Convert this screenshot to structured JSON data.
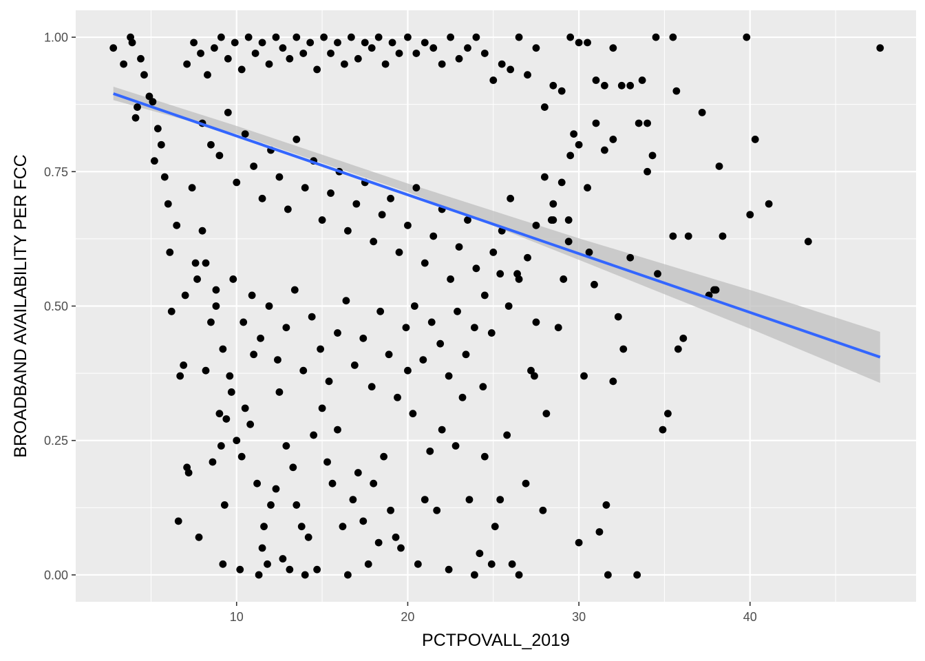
{
  "chart_data": {
    "type": "scatter",
    "title": "",
    "xlabel": "PCTPOVALL_2019",
    "ylabel": "BROADBAND AVAILABILITY PER FCC",
    "xlim": [
      0.6,
      49.7
    ],
    "ylim": [
      -0.05,
      1.05
    ],
    "x_ticks": [
      10,
      20,
      30,
      40
    ],
    "x_tick_labels": [
      "10",
      "20",
      "30",
      "40"
    ],
    "y_ticks": [
      0,
      0.25,
      0.5,
      0.75,
      1
    ],
    "y_tick_labels": [
      "0.00",
      "0.25",
      "0.50",
      "0.75",
      "1.00"
    ],
    "grid": true,
    "legend": "none",
    "colors": {
      "panel": "#ebebeb",
      "grid": "#ffffff",
      "points": "#000000",
      "fit_line": "#3366ff",
      "confidence_band": "#bfbfbf"
    },
    "fit_line": {
      "method": "lm",
      "x_start": 2.8,
      "y_start": 0.895,
      "x_end": 47.6,
      "y_end": 0.405
    },
    "confidence_band": {
      "x": [
        2.8,
        10,
        20,
        30,
        40,
        47.6
      ],
      "lower": [
        0.883,
        0.82,
        0.712,
        0.586,
        0.458,
        0.357
      ],
      "upper": [
        0.908,
        0.835,
        0.728,
        0.626,
        0.53,
        0.452
      ]
    },
    "series": [
      {
        "values": [
          [
            2.8,
            0.98
          ],
          [
            3.4,
            0.95
          ],
          [
            3.8,
            1.0
          ],
          [
            3.9,
            0.99
          ],
          [
            4.1,
            0.85
          ],
          [
            4.2,
            0.87
          ],
          [
            4.4,
            0.96
          ],
          [
            4.6,
            0.93
          ],
          [
            4.9,
            0.89
          ],
          [
            5.1,
            0.88
          ],
          [
            5.2,
            0.77
          ],
          [
            5.4,
            0.83
          ],
          [
            5.6,
            0.8
          ],
          [
            5.8,
            0.74
          ],
          [
            6.0,
            0.69
          ],
          [
            6.1,
            0.6
          ],
          [
            6.2,
            0.49
          ],
          [
            6.5,
            0.65
          ],
          [
            6.6,
            0.1
          ],
          [
            6.7,
            0.37
          ],
          [
            6.9,
            0.39
          ],
          [
            7.0,
            0.52
          ],
          [
            7.1,
            0.2
          ],
          [
            7.2,
            0.19
          ],
          [
            7.4,
            0.72
          ],
          [
            7.6,
            0.58
          ],
          [
            7.7,
            0.55
          ],
          [
            7.8,
            0.07
          ],
          [
            8.0,
            0.64
          ],
          [
            8.2,
            0.38
          ],
          [
            8.5,
            0.47
          ],
          [
            8.6,
            0.21
          ],
          [
            8.8,
            0.53
          ],
          [
            9.0,
            0.3
          ],
          [
            9.1,
            0.24
          ],
          [
            9.2,
            0.02
          ],
          [
            9.3,
            0.13
          ],
          [
            9.4,
            0.29
          ],
          [
            9.6,
            0.37
          ],
          [
            9.7,
            0.34
          ],
          [
            10.0,
            0.25
          ],
          [
            10.2,
            0.01
          ],
          [
            10.3,
            0.22
          ],
          [
            10.5,
            0.31
          ],
          [
            10.8,
            0.28
          ],
          [
            11.0,
            0.41
          ],
          [
            11.2,
            0.17
          ],
          [
            11.3,
            0.0
          ],
          [
            11.5,
            0.05
          ],
          [
            11.6,
            0.09
          ],
          [
            11.8,
            0.02
          ],
          [
            12.0,
            0.13
          ],
          [
            12.3,
            0.16
          ],
          [
            12.5,
            0.34
          ],
          [
            12.7,
            0.03
          ],
          [
            12.9,
            0.24
          ],
          [
            13.1,
            0.01
          ],
          [
            13.3,
            0.2
          ],
          [
            13.5,
            0.13
          ],
          [
            13.8,
            0.09
          ],
          [
            14.0,
            0.0
          ],
          [
            14.2,
            0.07
          ],
          [
            14.5,
            0.26
          ],
          [
            14.7,
            0.01
          ],
          [
            15.0,
            0.31
          ],
          [
            15.3,
            0.21
          ],
          [
            15.6,
            0.17
          ],
          [
            15.9,
            0.27
          ],
          [
            16.2,
            0.09
          ],
          [
            16.5,
            0.0
          ],
          [
            16.8,
            0.14
          ],
          [
            17.1,
            0.19
          ],
          [
            17.4,
            0.1
          ],
          [
            17.7,
            0.02
          ],
          [
            18.0,
            0.17
          ],
          [
            18.3,
            0.06
          ],
          [
            18.6,
            0.22
          ],
          [
            19.0,
            0.12
          ],
          [
            19.3,
            0.07
          ],
          [
            19.6,
            0.05
          ],
          [
            20.0,
            0.38
          ],
          [
            20.3,
            0.3
          ],
          [
            20.6,
            0.02
          ],
          [
            21.0,
            0.14
          ],
          [
            21.3,
            0.23
          ],
          [
            21.7,
            0.12
          ],
          [
            22.0,
            0.27
          ],
          [
            22.4,
            0.01
          ],
          [
            22.8,
            0.24
          ],
          [
            23.2,
            0.33
          ],
          [
            23.6,
            0.14
          ],
          [
            23.9,
            0.0
          ],
          [
            24.2,
            0.04
          ],
          [
            24.5,
            0.22
          ],
          [
            24.9,
            0.02
          ],
          [
            25.1,
            0.09
          ],
          [
            25.4,
            0.14
          ],
          [
            25.8,
            0.26
          ],
          [
            26.1,
            0.02
          ],
          [
            26.5,
            0.0
          ],
          [
            26.9,
            0.17
          ],
          [
            27.2,
            0.38
          ],
          [
            27.5,
            0.47
          ],
          [
            27.9,
            0.12
          ],
          [
            28.1,
            0.3
          ],
          [
            28.5,
            0.66
          ],
          [
            28.8,
            0.46
          ],
          [
            29.1,
            0.55
          ],
          [
            29.4,
            0.62
          ],
          [
            29.7,
            0.82
          ],
          [
            30.0,
            0.06
          ],
          [
            30.3,
            0.37
          ],
          [
            30.6,
            0.6
          ],
          [
            30.9,
            0.54
          ],
          [
            31.2,
            0.08
          ],
          [
            31.6,
            0.13
          ],
          [
            31.7,
            0.0
          ],
          [
            32.0,
            0.36
          ],
          [
            32.3,
            0.48
          ],
          [
            32.6,
            0.42
          ],
          [
            33.0,
            0.91
          ],
          [
            33.4,
            0.0
          ],
          [
            33.7,
            0.92
          ],
          [
            34.0,
            0.75
          ],
          [
            34.3,
            0.78
          ],
          [
            34.6,
            0.56
          ],
          [
            34.9,
            0.27
          ],
          [
            35.2,
            0.3
          ],
          [
            35.5,
            0.63
          ],
          [
            35.8,
            0.42
          ],
          [
            36.1,
            0.44
          ],
          [
            36.4,
            0.63
          ],
          [
            37.2,
            0.86
          ],
          [
            37.9,
            0.53
          ],
          [
            38.2,
            0.76
          ],
          [
            38.4,
            0.63
          ],
          [
            39.8,
            1.0
          ],
          [
            40.0,
            0.67
          ],
          [
            40.3,
            0.81
          ],
          [
            41.1,
            0.69
          ],
          [
            43.4,
            0.62
          ],
          [
            47.6,
            0.98
          ],
          [
            7.1,
            0.95
          ],
          [
            7.5,
            0.99
          ],
          [
            7.9,
            0.97
          ],
          [
            8.3,
            0.93
          ],
          [
            8.7,
            0.98
          ],
          [
            9.1,
            1.0
          ],
          [
            9.5,
            0.96
          ],
          [
            9.9,
            0.99
          ],
          [
            10.3,
            0.94
          ],
          [
            10.7,
            1.0
          ],
          [
            11.1,
            0.97
          ],
          [
            11.5,
            0.99
          ],
          [
            11.9,
            0.95
          ],
          [
            12.3,
            1.0
          ],
          [
            12.7,
            0.98
          ],
          [
            13.1,
            0.96
          ],
          [
            13.5,
            1.0
          ],
          [
            13.9,
            0.97
          ],
          [
            14.3,
            0.99
          ],
          [
            14.7,
            0.94
          ],
          [
            15.1,
            1.0
          ],
          [
            15.5,
            0.97
          ],
          [
            15.9,
            0.99
          ],
          [
            16.3,
            0.95
          ],
          [
            16.7,
            1.0
          ],
          [
            17.1,
            0.96
          ],
          [
            17.5,
            0.99
          ],
          [
            17.9,
            0.98
          ],
          [
            18.3,
            1.0
          ],
          [
            18.7,
            0.95
          ],
          [
            19.1,
            0.99
          ],
          [
            19.5,
            0.97
          ],
          [
            20.0,
            1.0
          ],
          [
            20.5,
            0.97
          ],
          [
            21.0,
            0.99
          ],
          [
            21.5,
            0.98
          ],
          [
            22.0,
            0.95
          ],
          [
            22.5,
            1.0
          ],
          [
            23.0,
            0.96
          ],
          [
            23.5,
            0.98
          ],
          [
            24.0,
            1.0
          ],
          [
            24.5,
            0.97
          ],
          [
            25.0,
            0.92
          ],
          [
            25.5,
            0.95
          ],
          [
            26.0,
            0.94
          ],
          [
            26.5,
            1.0
          ],
          [
            27.0,
            0.93
          ],
          [
            27.5,
            0.98
          ],
          [
            28.0,
            0.87
          ],
          [
            28.5,
            0.91
          ],
          [
            29.0,
            0.9
          ],
          [
            29.5,
            1.0
          ],
          [
            30.0,
            0.99
          ],
          [
            30.5,
            0.99
          ],
          [
            31.0,
            0.92
          ],
          [
            31.5,
            0.91
          ],
          [
            32.0,
            0.98
          ],
          [
            32.5,
            0.91
          ],
          [
            34.5,
            1.0
          ],
          [
            35.5,
            1.0
          ],
          [
            35.7,
            0.9
          ],
          [
            8.0,
            0.84
          ],
          [
            8.5,
            0.8
          ],
          [
            9.0,
            0.78
          ],
          [
            9.5,
            0.86
          ],
          [
            10.0,
            0.73
          ],
          [
            10.5,
            0.82
          ],
          [
            11.0,
            0.76
          ],
          [
            11.5,
            0.7
          ],
          [
            12.0,
            0.79
          ],
          [
            12.5,
            0.74
          ],
          [
            13.0,
            0.68
          ],
          [
            13.5,
            0.81
          ],
          [
            14.0,
            0.72
          ],
          [
            14.5,
            0.77
          ],
          [
            15.0,
            0.66
          ],
          [
            15.5,
            0.71
          ],
          [
            16.0,
            0.75
          ],
          [
            16.5,
            0.64
          ],
          [
            17.0,
            0.69
          ],
          [
            17.5,
            0.73
          ],
          [
            18.0,
            0.62
          ],
          [
            18.5,
            0.67
          ],
          [
            19.0,
            0.7
          ],
          [
            19.5,
            0.6
          ],
          [
            20.0,
            0.65
          ],
          [
            20.5,
            0.72
          ],
          [
            21.0,
            0.58
          ],
          [
            21.5,
            0.63
          ],
          [
            22.0,
            0.68
          ],
          [
            22.5,
            0.55
          ],
          [
            23.0,
            0.61
          ],
          [
            23.5,
            0.66
          ],
          [
            24.0,
            0.57
          ],
          [
            24.5,
            0.52
          ],
          [
            25.0,
            0.6
          ],
          [
            25.5,
            0.64
          ],
          [
            26.0,
            0.7
          ],
          [
            26.5,
            0.55
          ],
          [
            27.0,
            0.59
          ],
          [
            27.5,
            0.65
          ],
          [
            28.0,
            0.74
          ],
          [
            28.5,
            0.69
          ],
          [
            29.0,
            0.73
          ],
          [
            29.5,
            0.78
          ],
          [
            30.0,
            0.8
          ],
          [
            30.5,
            0.72
          ],
          [
            31.0,
            0.84
          ],
          [
            31.5,
            0.79
          ],
          [
            32.0,
            0.81
          ],
          [
            33.0,
            0.59
          ],
          [
            33.5,
            0.84
          ],
          [
            34.0,
            0.84
          ],
          [
            37.6,
            0.52
          ],
          [
            38.0,
            0.53
          ],
          [
            8.2,
            0.58
          ],
          [
            8.8,
            0.5
          ],
          [
            9.2,
            0.42
          ],
          [
            9.8,
            0.55
          ],
          [
            10.4,
            0.47
          ],
          [
            10.9,
            0.52
          ],
          [
            11.4,
            0.44
          ],
          [
            11.9,
            0.5
          ],
          [
            12.4,
            0.4
          ],
          [
            12.9,
            0.46
          ],
          [
            13.4,
            0.53
          ],
          [
            13.9,
            0.38
          ],
          [
            14.4,
            0.48
          ],
          [
            14.9,
            0.42
          ],
          [
            15.4,
            0.36
          ],
          [
            15.9,
            0.45
          ],
          [
            16.4,
            0.51
          ],
          [
            16.9,
            0.39
          ],
          [
            17.4,
            0.44
          ],
          [
            17.9,
            0.35
          ],
          [
            18.4,
            0.49
          ],
          [
            18.9,
            0.41
          ],
          [
            19.4,
            0.33
          ],
          [
            19.9,
            0.46
          ],
          [
            20.4,
            0.5
          ],
          [
            20.9,
            0.4
          ],
          [
            21.4,
            0.47
          ],
          [
            21.9,
            0.43
          ],
          [
            22.4,
            0.37
          ],
          [
            22.9,
            0.49
          ],
          [
            23.4,
            0.41
          ],
          [
            23.9,
            0.46
          ],
          [
            24.4,
            0.35
          ],
          [
            24.9,
            0.45
          ],
          [
            25.4,
            0.56
          ],
          [
            25.9,
            0.5
          ],
          [
            26.4,
            0.56
          ],
          [
            27.4,
            0.37
          ],
          [
            28.4,
            0.66
          ],
          [
            29.4,
            0.66
          ]
        ]
      }
    ]
  }
}
